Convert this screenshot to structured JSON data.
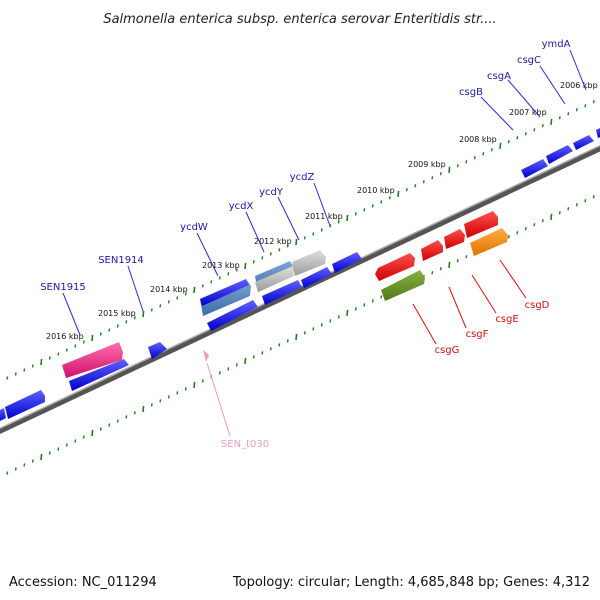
{
  "title": "Salmonella enterica subsp. enterica serovar Enteritidis str....",
  "footer": {
    "accession": "Accession: NC_011294",
    "topology": "Topology: circular; Length: 4,685,848 bp; Genes: 4,312"
  },
  "scale_labels": [
    "2006 kbp",
    "2007 kbp",
    "2008 kbp",
    "2009 kbp",
    "2010 kbp",
    "2011 kbp",
    "2012 kbp",
    "2013 kbp",
    "2014 kbp",
    "2015 kbp",
    "2016 kbp"
  ],
  "genes_forward": [
    "ymdA",
    "csgC",
    "csgA",
    "csgB",
    "ycdZ",
    "ycdY",
    "ycdX",
    "ycdW",
    "SEN1914",
    "SEN1915"
  ],
  "genes_reverse": [
    "csgD",
    "csgE",
    "csgF",
    "csgG"
  ],
  "rna_genes": [
    "SEN_t030"
  ],
  "colors": {
    "forward_cds": "#0000ff",
    "reverse_cds": "#ff0000",
    "highlight_pink": "#e8207e",
    "highlight_orange": "#ff8c00",
    "highlight_olive": "#5c8a20",
    "tick": "#1a7f1a",
    "backbone": "#777777"
  }
}
